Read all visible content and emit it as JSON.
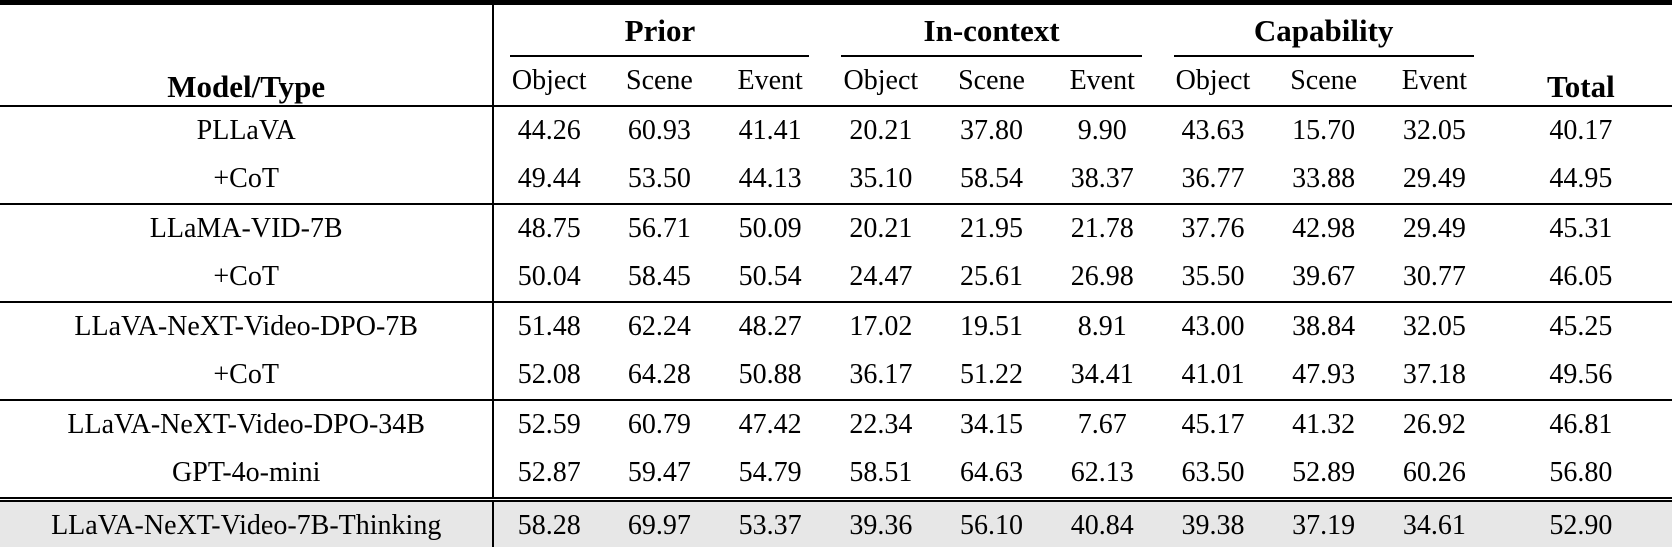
{
  "table": {
    "model_header": "Model/Type",
    "total_header": "Total",
    "groups": [
      {
        "label": "Prior",
        "sub": [
          "Object",
          "Scene",
          "Event"
        ]
      },
      {
        "label": "In-context",
        "sub": [
          "Object",
          "Scene",
          "Event"
        ]
      },
      {
        "label": "Capability",
        "sub": [
          "Object",
          "Scene",
          "Event"
        ]
      }
    ],
    "rows": [
      {
        "model": "PLLaVA",
        "group": 1,
        "highlight": false,
        "values": [
          "44.26",
          "60.93",
          "41.41",
          "20.21",
          "37.80",
          "9.90",
          "43.63",
          "15.70",
          "32.05"
        ],
        "total": "40.17"
      },
      {
        "model": "+CoT",
        "group": 1,
        "highlight": false,
        "values": [
          "49.44",
          "53.50",
          "44.13",
          "35.10",
          "58.54",
          "38.37",
          "36.77",
          "33.88",
          "29.49"
        ],
        "total": "44.95"
      },
      {
        "model": "LLaMA-VID-7B",
        "group": 2,
        "highlight": false,
        "values": [
          "48.75",
          "56.71",
          "50.09",
          "20.21",
          "21.95",
          "21.78",
          "37.76",
          "42.98",
          "29.49"
        ],
        "total": "45.31"
      },
      {
        "model": "+CoT",
        "group": 2,
        "highlight": false,
        "values": [
          "50.04",
          "58.45",
          "50.54",
          "24.47",
          "25.61",
          "26.98",
          "35.50",
          "39.67",
          "30.77"
        ],
        "total": "46.05"
      },
      {
        "model": "LLaVA-NeXT-Video-DPO-7B",
        "group": 3,
        "highlight": false,
        "values": [
          "51.48",
          "62.24",
          "48.27",
          "17.02",
          "19.51",
          "8.91",
          "43.00",
          "38.84",
          "32.05"
        ],
        "total": "45.25"
      },
      {
        "model": "+CoT",
        "group": 3,
        "highlight": false,
        "values": [
          "52.08",
          "64.28",
          "50.88",
          "36.17",
          "51.22",
          "34.41",
          "41.01",
          "47.93",
          "37.18"
        ],
        "total": "49.56"
      },
      {
        "model": "LLaVA-NeXT-Video-DPO-34B",
        "group": 4,
        "highlight": false,
        "values": [
          "52.59",
          "60.79",
          "47.42",
          "22.34",
          "34.15",
          "7.67",
          "45.17",
          "41.32",
          "26.92"
        ],
        "total": "46.81"
      },
      {
        "model": "GPT-4o-mini",
        "group": 4,
        "highlight": false,
        "values": [
          "52.87",
          "59.47",
          "54.79",
          "58.51",
          "64.63",
          "62.13",
          "63.50",
          "52.89",
          "60.26"
        ],
        "total": "56.80"
      },
      {
        "model": "LLaVA-NeXT-Video-7B-Thinking",
        "group": 5,
        "highlight": true,
        "values": [
          "58.28",
          "69.97",
          "53.37",
          "39.36",
          "56.10",
          "40.84",
          "39.38",
          "37.19",
          "34.61"
        ],
        "total": "52.90"
      }
    ],
    "colors": {
      "highlight_row": "#e7e7e7",
      "rule": "#000000",
      "text": "#000000",
      "background": "#ffffff"
    }
  }
}
